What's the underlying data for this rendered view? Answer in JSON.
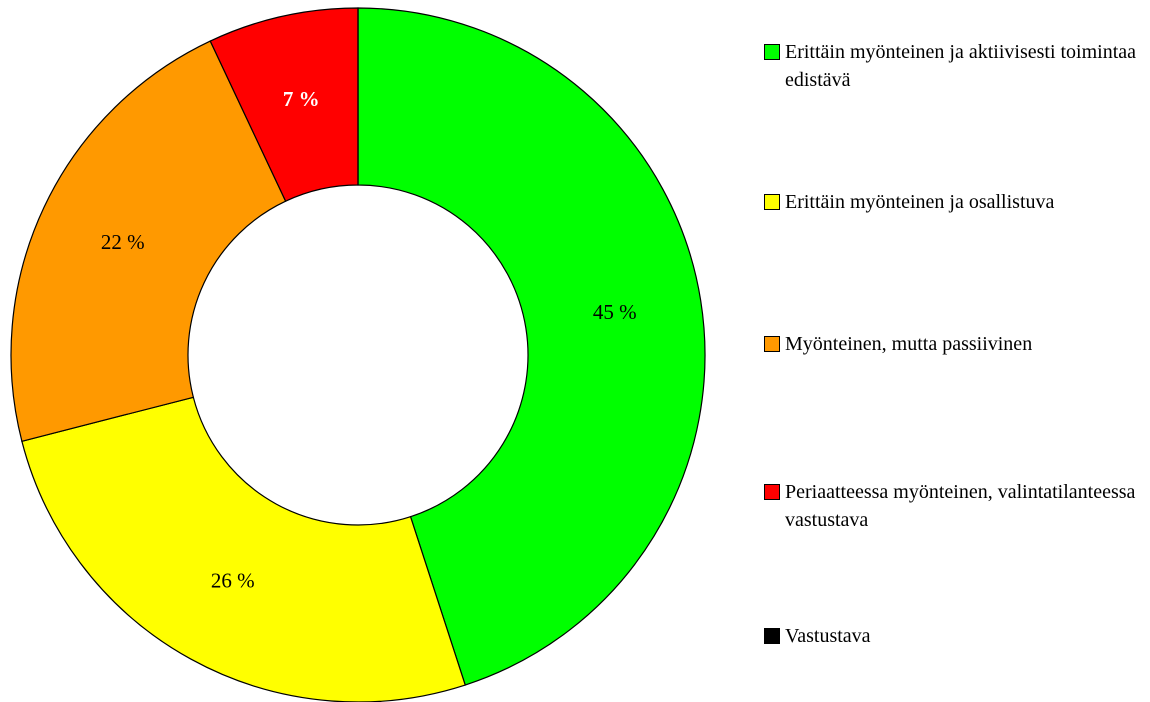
{
  "chart_data": {
    "type": "donut",
    "categories": [
      "Erittäin myönteinen ja aktiivisesti toimintaa edistävä",
      "Erittäin myönteinen ja osallistuva",
      "Myönteinen, mutta passiivinen",
      "Periaatteessa myönteinen, valintatilanteessa vastustava",
      "Vastustava"
    ],
    "values": [
      45,
      26,
      22,
      7,
      0
    ],
    "value_labels": [
      "45 %",
      "26 %",
      "22 %",
      "7 %",
      null
    ],
    "colors": [
      "#00ff00",
      "#ffff00",
      "#ff9900",
      "#ff0000",
      "#000000"
    ],
    "label_colors": [
      "#000000",
      "#000000",
      "#000000",
      "#ffffff",
      "#000000"
    ],
    "legend": "right"
  }
}
